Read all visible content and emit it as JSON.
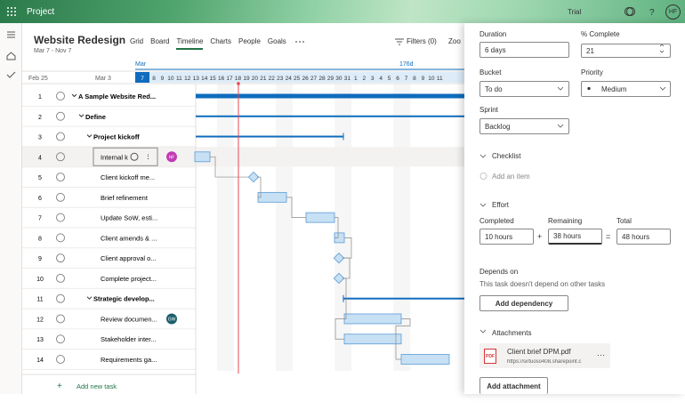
{
  "app": {
    "name": "Project",
    "trial": "Trial",
    "user_initials": "HF"
  },
  "header": {
    "title": "Website Redesign",
    "dates": "Mar 7 - Nov 7",
    "tabs": [
      "Grid",
      "Board",
      "Timeline",
      "Charts",
      "People",
      "Goals"
    ],
    "active_tab": "Timeline",
    "filters": "Filters (0)",
    "zoom": "Zoo"
  },
  "timeline": {
    "month": "Mar",
    "duration": "176d",
    "week_labels": [
      "Feb 25",
      "Mar 3"
    ],
    "days": [
      "7",
      "8",
      "9",
      "10",
      "11",
      "12",
      "13",
      "14",
      "15",
      "16",
      "17",
      "18",
      "19",
      "20",
      "21",
      "22",
      "23",
      "24",
      "25",
      "26",
      "27",
      "28",
      "29",
      "30",
      "31",
      "1",
      "2",
      "3",
      "4",
      "5",
      "6",
      "7",
      "8",
      "9",
      "10",
      "11"
    ]
  },
  "tasks": [
    {
      "number": "1",
      "name": "A Sample Website Red...",
      "level": 0,
      "summary": true
    },
    {
      "number": "2",
      "name": "Define",
      "level": 1,
      "summary": true
    },
    {
      "number": "3",
      "name": "Project kickoff",
      "level": 2,
      "summary": true
    },
    {
      "number": "4",
      "name": "Internal k",
      "level": 3,
      "avatar": "HF"
    },
    {
      "number": "5",
      "name": "Client kickoff me...",
      "level": 3
    },
    {
      "number": "6",
      "name": "Brief refinement",
      "level": 3
    },
    {
      "number": "7",
      "name": "Update SoW, esti...",
      "level": 3
    },
    {
      "number": "8",
      "name": "Client amends & ...",
      "level": 3
    },
    {
      "number": "9",
      "name": "Client approval o...",
      "level": 3
    },
    {
      "number": "10",
      "name": "Complete project...",
      "level": 3
    },
    {
      "number": "11",
      "name": "Strategic develop...",
      "level": 2,
      "summary": true
    },
    {
      "number": "12",
      "name": "Review documen...",
      "level": 3,
      "avatar": "GW"
    },
    {
      "number": "13",
      "name": "Stakeholder inter...",
      "level": 3
    },
    {
      "number": "14",
      "name": "Requirements ga...",
      "level": 3
    }
  ],
  "add_task": "Add new task",
  "panel": {
    "duration_label": "Duration",
    "duration": "6 days",
    "complete_label": "% Complete",
    "complete": "21",
    "bucket_label": "Bucket",
    "bucket": "To do",
    "priority_label": "Priority",
    "priority": "Medium",
    "sprint_label": "Sprint",
    "sprint": "Backlog",
    "checklist": "Checklist",
    "add_item": "Add an item",
    "effort": "Effort",
    "completed_label": "Completed",
    "completed": "10 hours",
    "remaining_label": "Remaining",
    "remaining": "38 hours",
    "total_label": "Total",
    "total": "48 hours",
    "depends_on": "Depends on",
    "depends_text": "This task doesn't depend on other tasks",
    "add_dependency": "Add dependency",
    "attachments": "Attachments",
    "file_icon": "PDF",
    "file_name": "Client brief DPM.pdf",
    "file_url": "https://sirtuoso408.sharepoint.c",
    "add_attachment": "Add attachment"
  }
}
